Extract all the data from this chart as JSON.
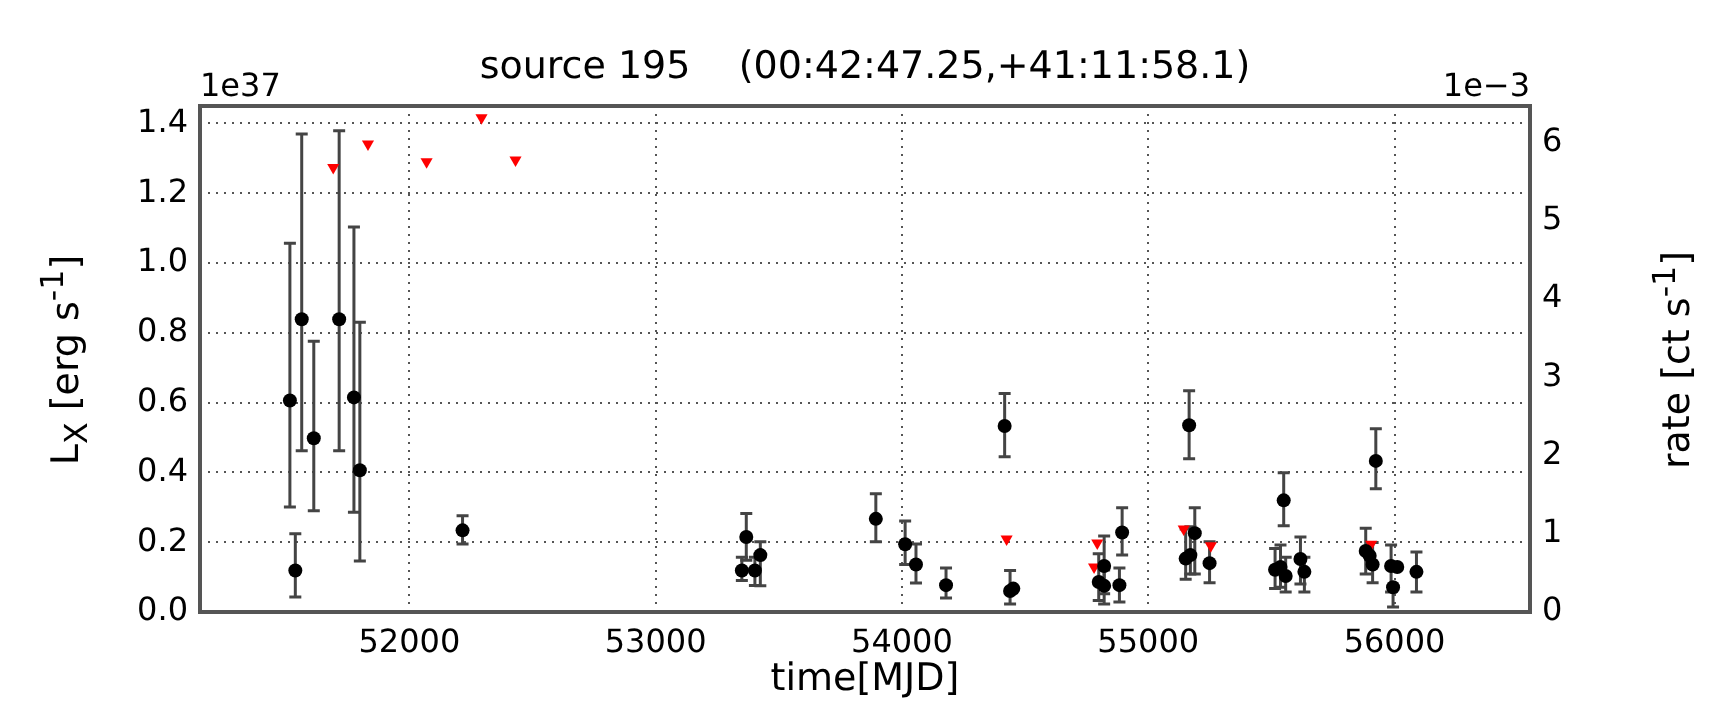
{
  "chart_data": {
    "type": "scatter",
    "title": "source 195    (00:42:47.25,+41:11:58.1)",
    "xlabel": "time[MJD]",
    "ylabel": "L$_{X}$ [erg s$^{-1}$]",
    "y2label": "rate [ct s$^{-1}$]",
    "annotations": [
      "1e37",
      "1e−3"
    ],
    "xlim": [
      51150,
      56550
    ],
    "xticks": [
      52000,
      53000,
      54000,
      55000,
      56000
    ],
    "ylim": [
      0,
      1.45
    ],
    "yticks": [
      {
        "value": 0,
        "label": "0.0"
      },
      0.2,
      0.4,
      0.6,
      0.8,
      {
        "value": 1,
        "label": "1.0"
      },
      1.2,
      1.4
    ],
    "y2lim": [
      0,
      6.47
    ],
    "y2ticks": [
      0,
      1,
      2,
      3,
      4,
      5,
      6
    ],
    "grid": true,
    "legend": false,
    "series": [
      {
        "marker": "circle",
        "color": "#000000",
        "x": [
          51515,
          51537,
          51563,
          51612,
          51715,
          51775,
          51799,
          52216,
          53350,
          53368,
          53403,
          53425,
          53894,
          54013,
          54057,
          54179,
          54417,
          54439,
          54452,
          54799,
          54821,
          54821,
          54883,
          54894,
          55152,
          55166,
          55171,
          55189,
          55249,
          55515,
          55537,
          55550,
          55558,
          55618,
          55634,
          55883,
          55899,
          55911,
          55924,
          55986,
          55994,
          56011,
          56089
        ],
        "values": [
          0.606,
          0.119,
          0.839,
          0.498,
          0.839,
          0.615,
          0.406,
          0.234,
          0.119,
          0.215,
          0.119,
          0.163,
          0.267,
          0.194,
          0.136,
          0.077,
          0.533,
          0.06,
          0.067,
          0.086,
          0.132,
          0.075,
          0.077,
          0.228,
          0.153,
          0.535,
          0.163,
          0.226,
          0.14,
          0.121,
          0.129,
          0.32,
          0.103,
          0.152,
          0.115,
          0.175,
          0.161,
          0.136,
          0.433,
          0.132,
          0.071,
          0.129,
          0.115
        ],
        "errors": [
          [
            0.301,
            1.057
          ],
          [
            0.043,
            0.224
          ],
          [
            0.462,
            1.37
          ],
          [
            0.29,
            0.776
          ],
          [
            0.462,
            1.379
          ],
          [
            0.286,
            1.103
          ],
          [
            0.146,
            0.83
          ],
          [
            0.195,
            0.276
          ],
          [
            0.09,
            0.157
          ],
          [
            0.148,
            0.282
          ],
          [
            0.076,
            0.157
          ],
          [
            0.075,
            0.201
          ],
          [
            0.201,
            0.339
          ],
          [
            0.136,
            0.261
          ],
          [
            0.083,
            0.195
          ],
          [
            0.04,
            0.126
          ],
          [
            0.445,
            0.626
          ],
          [
            0.023,
            0.119
          ],
          null,
          [
            0.033,
            0.167
          ],
          [
            0.052,
            0.218
          ],
          [
            0.023,
            0.12
          ],
          [
            0.029,
            0.126
          ],
          [
            0.163,
            0.299
          ],
          [
            0.094,
            0.238
          ],
          [
            0.439,
            0.634
          ],
          [
            0.109,
            0.244
          ],
          [
            0.109,
            0.299
          ],
          [
            0.084,
            0.201
          ],
          [
            0.067,
            0.182
          ],
          [
            0.071,
            0.192
          ],
          [
            0.247,
            0.399
          ],
          [
            0.057,
            0.157
          ],
          [
            0.08,
            0.215
          ],
          [
            0.057,
            0.157
          ],
          [
            0.109,
            0.24
          ],
          null,
          [
            0.084,
            0.199
          ],
          [
            0.353,
            0.525
          ],
          [
            0.057,
            0.192
          ],
          [
            0.014,
            0.071
          ],
          null,
          [
            0.057,
            0.172
          ]
        ]
      },
      {
        "marker": "triangle",
        "color": "#ff0000",
        "x": [
          51691,
          51832,
          52070,
          52293,
          52431,
          54425,
          54780,
          54793,
          55144,
          55254,
          55905
        ],
        "values": [
          1.274,
          1.341,
          1.29,
          1.416,
          1.295,
          0.209,
          0.129,
          0.198,
          0.238,
          0.19,
          0.194
        ]
      }
    ]
  }
}
